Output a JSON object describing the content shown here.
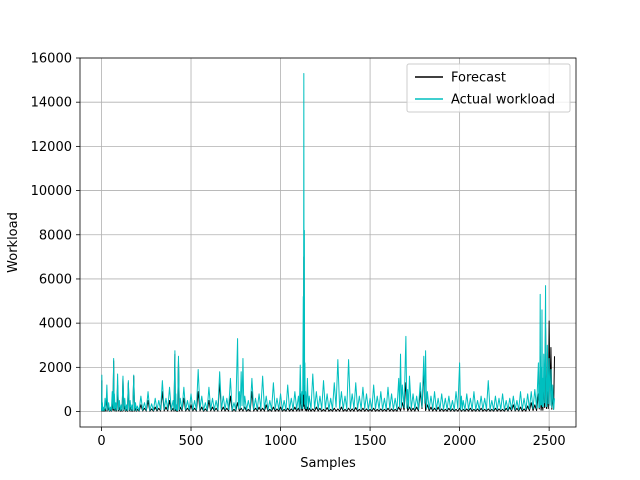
{
  "chart_data": {
    "type": "line",
    "title": "",
    "xlabel": "Samples",
    "ylabel": "Workload",
    "xlim": [
      -120,
      2650
    ],
    "ylim": [
      -700,
      16000
    ],
    "xticks": [
      0,
      500,
      1000,
      1500,
      2000,
      2500
    ],
    "yticks": [
      0,
      2000,
      4000,
      6000,
      8000,
      10000,
      12000,
      14000,
      16000
    ],
    "grid": true,
    "legend_position": "top-right",
    "n_samples": 2530,
    "series": [
      {
        "name": "Forecast",
        "color": "#000000",
        "points": [
          [
            0,
            150
          ],
          [
            2,
            1400
          ],
          [
            5,
            300
          ],
          [
            10,
            80
          ],
          [
            20,
            120
          ],
          [
            30,
            700
          ],
          [
            40,
            200
          ],
          [
            50,
            90
          ],
          [
            60,
            350
          ],
          [
            68,
            2300
          ],
          [
            72,
            400
          ],
          [
            80,
            150
          ],
          [
            90,
            1200
          ],
          [
            100,
            200
          ],
          [
            110,
            80
          ],
          [
            120,
            1500
          ],
          [
            130,
            250
          ],
          [
            140,
            100
          ],
          [
            150,
            1300
          ],
          [
            160,
            200
          ],
          [
            170,
            90
          ],
          [
            180,
            1600
          ],
          [
            190,
            150
          ],
          [
            200,
            100
          ],
          [
            220,
            300
          ],
          [
            240,
            150
          ],
          [
            260,
            500
          ],
          [
            280,
            120
          ],
          [
            300,
            200
          ],
          [
            320,
            150
          ],
          [
            340,
            900
          ],
          [
            360,
            200
          ],
          [
            380,
            500
          ],
          [
            400,
            150
          ],
          [
            410,
            2600
          ],
          [
            415,
            300
          ],
          [
            420,
            100
          ],
          [
            430,
            2300
          ],
          [
            440,
            200
          ],
          [
            460,
            600
          ],
          [
            480,
            150
          ],
          [
            500,
            300
          ],
          [
            520,
            150
          ],
          [
            540,
            900
          ],
          [
            560,
            200
          ],
          [
            580,
            120
          ],
          [
            600,
            500
          ],
          [
            620,
            200
          ],
          [
            640,
            150
          ],
          [
            660,
            1300
          ],
          [
            680,
            200
          ],
          [
            700,
            150
          ],
          [
            720,
            700
          ],
          [
            740,
            100
          ],
          [
            760,
            400
          ],
          [
            780,
            150
          ],
          [
            800,
            200
          ],
          [
            820,
            100
          ],
          [
            840,
            900
          ],
          [
            860,
            150
          ],
          [
            880,
            200
          ],
          [
            900,
            150
          ],
          [
            920,
            300
          ],
          [
            940,
            100
          ],
          [
            960,
            200
          ],
          [
            980,
            120
          ],
          [
            1000,
            200
          ],
          [
            1020,
            100
          ],
          [
            1040,
            150
          ],
          [
            1060,
            120
          ],
          [
            1080,
            200
          ],
          [
            1100,
            150
          ],
          [
            1110,
            800
          ],
          [
            1120,
            300
          ],
          [
            1127,
            1600
          ],
          [
            1130,
            7000
          ],
          [
            1133,
            3500
          ],
          [
            1136,
            900
          ],
          [
            1140,
            300
          ],
          [
            1150,
            200
          ],
          [
            1160,
            150
          ],
          [
            1180,
            120
          ],
          [
            1200,
            200
          ],
          [
            1220,
            150
          ],
          [
            1240,
            100
          ],
          [
            1260,
            180
          ],
          [
            1280,
            100
          ],
          [
            1300,
            150
          ],
          [
            1320,
            120
          ],
          [
            1340,
            200
          ],
          [
            1360,
            100
          ],
          [
            1380,
            150
          ],
          [
            1400,
            120
          ],
          [
            1420,
            180
          ],
          [
            1440,
            100
          ],
          [
            1460,
            150
          ],
          [
            1480,
            120
          ],
          [
            1500,
            100
          ],
          [
            1520,
            150
          ],
          [
            1540,
            100
          ],
          [
            1560,
            120
          ],
          [
            1580,
            100
          ],
          [
            1600,
            150
          ],
          [
            1620,
            120
          ],
          [
            1640,
            100
          ],
          [
            1660,
            200
          ],
          [
            1680,
            400
          ],
          [
            1700,
            1300
          ],
          [
            1720,
            200
          ],
          [
            1740,
            150
          ],
          [
            1760,
            200
          ],
          [
            1780,
            900
          ],
          [
            1800,
            1800
          ],
          [
            1820,
            300
          ],
          [
            1840,
            200
          ],
          [
            1860,
            150
          ],
          [
            1880,
            200
          ],
          [
            1900,
            120
          ],
          [
            1920,
            100
          ],
          [
            1940,
            150
          ],
          [
            1960,
            120
          ],
          [
            1980,
            100
          ],
          [
            2000,
            150
          ],
          [
            2020,
            100
          ],
          [
            2040,
            120
          ],
          [
            2060,
            150
          ],
          [
            2080,
            100
          ],
          [
            2100,
            120
          ],
          [
            2120,
            150
          ],
          [
            2140,
            100
          ],
          [
            2160,
            120
          ],
          [
            2180,
            100
          ],
          [
            2200,
            150
          ],
          [
            2220,
            120
          ],
          [
            2240,
            100
          ],
          [
            2260,
            150
          ],
          [
            2280,
            200
          ],
          [
            2300,
            300
          ],
          [
            2320,
            150
          ],
          [
            2340,
            200
          ],
          [
            2360,
            120
          ],
          [
            2380,
            250
          ],
          [
            2400,
            400
          ],
          [
            2420,
            300
          ],
          [
            2440,
            800
          ],
          [
            2450,
            2500
          ],
          [
            2460,
            400
          ],
          [
            2470,
            1200
          ],
          [
            2480,
            3800
          ],
          [
            2490,
            900
          ],
          [
            2500,
            4100
          ],
          [
            2510,
            2900
          ],
          [
            2520,
            700
          ],
          [
            2530,
            2500
          ]
        ]
      },
      {
        "name": "Actual workload",
        "color": "#00bfbf",
        "points": [
          [
            0,
            300
          ],
          [
            2,
            1650
          ],
          [
            5,
            400
          ],
          [
            10,
            200
          ],
          [
            20,
            600
          ],
          [
            30,
            1200
          ],
          [
            40,
            400
          ],
          [
            50,
            200
          ],
          [
            60,
            900
          ],
          [
            68,
            2400
          ],
          [
            72,
            800
          ],
          [
            80,
            400
          ],
          [
            90,
            1700
          ],
          [
            100,
            500
          ],
          [
            110,
            300
          ],
          [
            120,
            1600
          ],
          [
            130,
            600
          ],
          [
            140,
            300
          ],
          [
            150,
            1400
          ],
          [
            160,
            500
          ],
          [
            170,
            300
          ],
          [
            180,
            1650
          ],
          [
            190,
            400
          ],
          [
            200,
            250
          ],
          [
            220,
            700
          ],
          [
            240,
            400
          ],
          [
            260,
            900
          ],
          [
            280,
            350
          ],
          [
            300,
            600
          ],
          [
            320,
            500
          ],
          [
            340,
            1400
          ],
          [
            360,
            600
          ],
          [
            380,
            1100
          ],
          [
            400,
            500
          ],
          [
            410,
            2750
          ],
          [
            415,
            800
          ],
          [
            420,
            300
          ],
          [
            430,
            2500
          ],
          [
            440,
            600
          ],
          [
            460,
            1100
          ],
          [
            480,
            500
          ],
          [
            500,
            800
          ],
          [
            520,
            500
          ],
          [
            540,
            1900
          ],
          [
            560,
            700
          ],
          [
            580,
            400
          ],
          [
            600,
            1100
          ],
          [
            620,
            600
          ],
          [
            640,
            500
          ],
          [
            660,
            1800
          ],
          [
            680,
            700
          ],
          [
            700,
            600
          ],
          [
            720,
            1500
          ],
          [
            740,
            400
          ],
          [
            760,
            3300
          ],
          [
            770,
            900
          ],
          [
            780,
            1800
          ],
          [
            790,
            2400
          ],
          [
            800,
            700
          ],
          [
            820,
            500
          ],
          [
            840,
            1500
          ],
          [
            860,
            600
          ],
          [
            880,
            800
          ],
          [
            900,
            1600
          ],
          [
            920,
            700
          ],
          [
            940,
            500
          ],
          [
            960,
            1300
          ],
          [
            980,
            600
          ],
          [
            1000,
            800
          ],
          [
            1020,
            500
          ],
          [
            1040,
            1200
          ],
          [
            1060,
            600
          ],
          [
            1080,
            900
          ],
          [
            1100,
            700
          ],
          [
            1110,
            2100
          ],
          [
            1120,
            900
          ],
          [
            1127,
            5200
          ],
          [
            1130,
            15300
          ],
          [
            1133,
            8200
          ],
          [
            1136,
            2200
          ],
          [
            1140,
            900
          ],
          [
            1150,
            1500
          ],
          [
            1160,
            700
          ],
          [
            1180,
            1700
          ],
          [
            1200,
            900
          ],
          [
            1220,
            700
          ],
          [
            1240,
            1400
          ],
          [
            1260,
            800
          ],
          [
            1280,
            600
          ],
          [
            1300,
            1300
          ],
          [
            1320,
            2350
          ],
          [
            1340,
            900
          ],
          [
            1360,
            700
          ],
          [
            1380,
            2350
          ],
          [
            1400,
            800
          ],
          [
            1420,
            1300
          ],
          [
            1440,
            700
          ],
          [
            1460,
            1100
          ],
          [
            1480,
            800
          ],
          [
            1500,
            600
          ],
          [
            1520,
            1200
          ],
          [
            1540,
            700
          ],
          [
            1560,
            900
          ],
          [
            1580,
            600
          ],
          [
            1600,
            1100
          ],
          [
            1620,
            800
          ],
          [
            1640,
            600
          ],
          [
            1660,
            1500
          ],
          [
            1670,
            2600
          ],
          [
            1680,
            1200
          ],
          [
            1700,
            3400
          ],
          [
            1710,
            1000
          ],
          [
            1720,
            1600
          ],
          [
            1740,
            800
          ],
          [
            1760,
            700
          ],
          [
            1780,
            1300
          ],
          [
            1800,
            2500
          ],
          [
            1810,
            2750
          ],
          [
            1820,
            900
          ],
          [
            1840,
            700
          ],
          [
            1860,
            900
          ],
          [
            1880,
            600
          ],
          [
            1900,
            800
          ],
          [
            1920,
            600
          ],
          [
            1940,
            700
          ],
          [
            1960,
            500
          ],
          [
            1980,
            900
          ],
          [
            2000,
            2200
          ],
          [
            2010,
            700
          ],
          [
            2020,
            500
          ],
          [
            2040,
            800
          ],
          [
            2060,
            600
          ],
          [
            2080,
            900
          ],
          [
            2100,
            500
          ],
          [
            2120,
            700
          ],
          [
            2140,
            600
          ],
          [
            2160,
            1400
          ],
          [
            2180,
            500
          ],
          [
            2200,
            700
          ],
          [
            2220,
            600
          ],
          [
            2240,
            800
          ],
          [
            2260,
            500
          ],
          [
            2280,
            600
          ],
          [
            2300,
            700
          ],
          [
            2320,
            500
          ],
          [
            2340,
            900
          ],
          [
            2360,
            600
          ],
          [
            2380,
            800
          ],
          [
            2400,
            900
          ],
          [
            2420,
            1000
          ],
          [
            2440,
            2200
          ],
          [
            2445,
            1200
          ],
          [
            2450,
            5300
          ],
          [
            2455,
            2000
          ],
          [
            2460,
            4600
          ],
          [
            2465,
            1500
          ],
          [
            2470,
            2600
          ],
          [
            2480,
            5700
          ],
          [
            2485,
            1500
          ],
          [
            2490,
            3000
          ],
          [
            2500,
            2400
          ],
          [
            2510,
            1900
          ],
          [
            2520,
            1200
          ],
          [
            2530,
            600
          ]
        ]
      }
    ]
  }
}
